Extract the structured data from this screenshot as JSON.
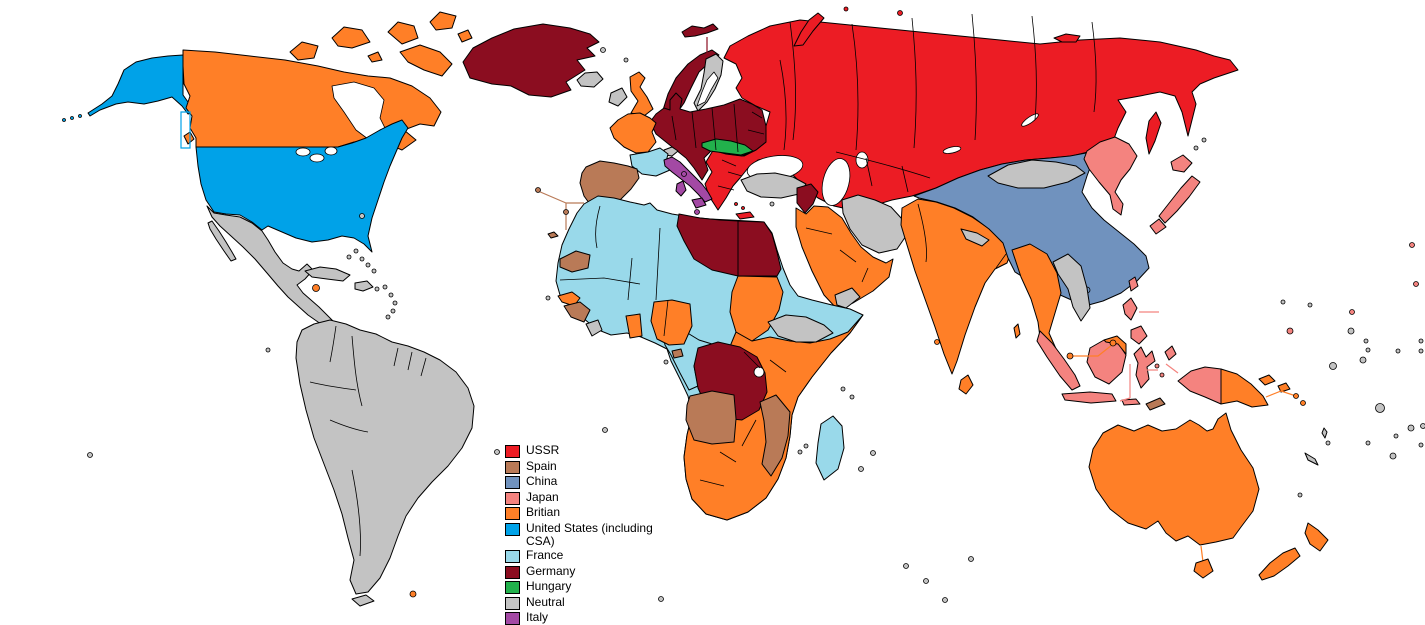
{
  "map": {
    "ocean_color": "#FFFFFF",
    "coastline_color": "#000000",
    "colors": {
      "USSR": "#EC1C24",
      "Spain": "#B97A57",
      "China": "#7092BE",
      "Japan": "#F4837F",
      "Britian": "#FF7F27",
      "United States (including CSA)": "#00A2E8",
      "France": "#99D9EA",
      "Germany": "#8B0D20",
      "Hungary": "#22B14C",
      "Neutral": "#C3C3C3",
      "Italy": "#A349A4"
    },
    "regions": {
      "ussr": "USSR",
      "sakhalin": "USSR",
      "novaya-zemlya": "USSR",
      "arctic-islands-ussr": "USSR",
      "crete": "USSR",
      "aegean-islands": "USSR",
      "norway": "Germany",
      "greenland": "Germany",
      "svalbard": "Germany",
      "central-europe": "Germany",
      "syria": "Germany",
      "libya": "Germany",
      "egypt": "Germany",
      "congo": "Germany",
      "sweden": "Neutral",
      "iceland": "Neutral",
      "faroe-islands": "Neutral",
      "shetland-islands": "Neutral",
      "ireland": "Neutral",
      "switzerland": "Neutral",
      "turkey": "Neutral",
      "cyprus": "Neutral",
      "iran": "Neutral",
      "yemen": "Neutral",
      "mongolia": "Neutral",
      "nepal": "Neutral",
      "indochina": "Neutral",
      "ethiopia": "Neutral",
      "sierra-leone": "Neutral",
      "sao-tome": "Neutral",
      "mexico-central-america": "Neutral",
      "cuba": "Neutral",
      "hispaniola": "Neutral",
      "puerto-rico": "Neutral",
      "south-america": "Neutral",
      "tierra-del-fuego": "Neutral",
      "new-caledonia": "Neutral",
      "vanuatu": "Neutral",
      "fiji": "Neutral",
      "kuril-islands": "Neutral",
      "neutral-island": "Neutral",
      "uk": "Britian",
      "france-north": "Britian",
      "canada": "Britian",
      "canadian-arctic": "Britian",
      "vancouver-island": "Britian",
      "jamaica": "Britian",
      "sudan": "Britian",
      "east-south-africa": "Britian",
      "senegal": "Britian",
      "ghana": "Britian",
      "nigeria": "Britian",
      "arabia": "Britian",
      "british-india": "Britian",
      "sri-lanka": "Britian",
      "andaman-islands": "Britian",
      "maldives": "Britian",
      "burma-malaya": "Britian",
      "singapore": "Britian",
      "borneo-north": "Britian",
      "east-new-guinea": "Britian",
      "bismarck-solomons": "Britian",
      "australia": "Britian",
      "tasmania": "Britian",
      "new-zealand": "Britian",
      "falkland-islands": "Britian",
      "alaska": "United States (including CSA)",
      "usa": "United States (including CSA)",
      "aleutian-islands": "United States (including CSA)",
      "france-south": "France",
      "africa-northwest": "France",
      "central-africa": "France",
      "madagascar": "France",
      "iberia": "Spain",
      "western-sahara": "Spain",
      "guinea": "Spain",
      "equatorial-guinea": "Spain",
      "angola": "Spain",
      "mozambique": "Spain",
      "timor": "Spain",
      "atlantic-islands-spain": "Spain",
      "canary-islands": "Spain",
      "hungary": "Hungary",
      "italy": "Italy",
      "sicily": "Italy",
      "sardinia": "Italy",
      "corsica": "Italy",
      "malta": "Italy",
      "china": "China",
      "hainan": "China",
      "manchuria-korea": "Japan",
      "japan": "Japan",
      "taiwan": "Japan",
      "philippines": "Japan",
      "indonesia": "Japan",
      "west-new-guinea": "Japan",
      "japan-pacific": "Japan"
    },
    "lines": {
      "svalbard-link": "Germany",
      "spain-atlantic-link": "Spain",
      "singapore-link": "Britian",
      "tasmania-link": "Britian",
      "philippines-link": "Japan",
      "sunda-link": "Japan",
      "solomons-link": "Britian",
      "us-coast-box": "United States (including CSA)",
      "arctic-link": "USSR"
    }
  },
  "legend": {
    "items": [
      "USSR",
      "Spain",
      "China",
      "Japan",
      "Britian",
      "United States (including CSA)",
      "France",
      "Germany",
      "Hungary",
      "Neutral",
      "Italy"
    ]
  }
}
